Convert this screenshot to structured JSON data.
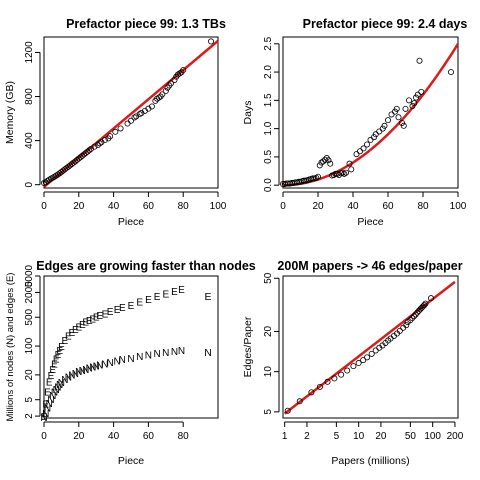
{
  "chart_data": [
    {
      "type": "scatter",
      "title": "Prefactor piece 99: 1.3 TBs",
      "xlabel": "Piece",
      "ylabel": "Memory (GB)",
      "xlim": [
        0,
        100
      ],
      "ylim": [
        -30,
        1340
      ],
      "xticks": [
        0,
        20,
        40,
        60,
        80,
        100
      ],
      "yticks": [
        0,
        400,
        800,
        1200
      ],
      "points": [
        [
          0,
          15
        ],
        [
          1,
          22
        ],
        [
          2,
          35
        ],
        [
          3,
          45
        ],
        [
          4,
          55
        ],
        [
          5,
          63
        ],
        [
          6,
          72
        ],
        [
          7,
          82
        ],
        [
          8,
          92
        ],
        [
          9,
          104
        ],
        [
          10,
          115
        ],
        [
          11,
          128
        ],
        [
          12,
          140
        ],
        [
          13,
          152
        ],
        [
          14,
          163
        ],
        [
          15,
          175
        ],
        [
          16,
          188
        ],
        [
          17,
          200
        ],
        [
          18,
          212
        ],
        [
          19,
          225
        ],
        [
          20,
          238
        ],
        [
          21,
          250
        ],
        [
          22,
          262
        ],
        [
          23,
          275
        ],
        [
          24,
          288
        ],
        [
          25,
          300
        ],
        [
          26,
          312
        ],
        [
          27,
          325
        ],
        [
          29,
          345
        ],
        [
          31,
          360
        ],
        [
          32,
          375
        ],
        [
          33,
          385
        ],
        [
          35,
          405
        ],
        [
          37,
          420
        ],
        [
          38,
          440
        ],
        [
          41,
          480
        ],
        [
          44,
          510
        ],
        [
          48,
          555
        ],
        [
          50,
          580
        ],
        [
          52,
          610
        ],
        [
          53,
          620
        ],
        [
          55,
          640
        ],
        [
          56,
          650
        ],
        [
          58,
          670
        ],
        [
          60,
          690
        ],
        [
          62,
          710
        ],
        [
          64,
          760
        ],
        [
          65,
          780
        ],
        [
          66,
          790
        ],
        [
          67,
          800
        ],
        [
          68,
          820
        ],
        [
          70,
          850
        ],
        [
          71,
          880
        ],
        [
          72,
          900
        ],
        [
          73,
          920
        ],
        [
          75,
          950
        ],
        [
          76,
          980
        ],
        [
          77,
          1000
        ],
        [
          78,
          1010
        ],
        [
          79,
          1020
        ],
        [
          80,
          1040
        ],
        [
          96,
          1300
        ]
      ],
      "fit": {
        "color": "#dd1a1a",
        "x": [
          0,
          100
        ],
        "y": [
          -20,
          1305
        ]
      }
    },
    {
      "type": "scatter",
      "title": "Prefactor piece 99: 2.4 days",
      "xlabel": "Piece",
      "ylabel": "Days",
      "xlim": [
        0,
        100
      ],
      "ylim": [
        -0.05,
        2.62
      ],
      "xticks": [
        0,
        20,
        40,
        60,
        80,
        100
      ],
      "yticks": [
        0.0,
        0.5,
        1.0,
        1.5,
        2.0,
        2.5
      ],
      "points": [
        [
          0,
          0.02
        ],
        [
          1,
          0.02
        ],
        [
          2,
          0.03
        ],
        [
          3,
          0.03
        ],
        [
          4,
          0.03
        ],
        [
          5,
          0.04
        ],
        [
          6,
          0.04
        ],
        [
          7,
          0.05
        ],
        [
          8,
          0.05
        ],
        [
          9,
          0.06
        ],
        [
          10,
          0.06
        ],
        [
          11,
          0.07
        ],
        [
          12,
          0.08
        ],
        [
          13,
          0.08
        ],
        [
          14,
          0.09
        ],
        [
          15,
          0.1
        ],
        [
          16,
          0.11
        ],
        [
          17,
          0.12
        ],
        [
          18,
          0.12
        ],
        [
          19,
          0.13
        ],
        [
          20,
          0.15
        ],
        [
          21,
          0.35
        ],
        [
          22,
          0.4
        ],
        [
          23,
          0.42
        ],
        [
          24,
          0.45
        ],
        [
          25,
          0.48
        ],
        [
          26,
          0.44
        ],
        [
          27,
          0.38
        ],
        [
          28,
          0.17
        ],
        [
          29,
          0.18
        ],
        [
          30,
          0.2
        ],
        [
          31,
          0.2
        ],
        [
          32,
          0.18
        ],
        [
          33,
          0.21
        ],
        [
          34,
          0.22
        ],
        [
          35,
          0.2
        ],
        [
          36,
          0.22
        ],
        [
          38,
          0.38
        ],
        [
          39,
          0.28
        ],
        [
          42,
          0.55
        ],
        [
          44,
          0.6
        ],
        [
          46,
          0.65
        ],
        [
          48,
          0.72
        ],
        [
          50,
          0.8
        ],
        [
          52,
          0.85
        ],
        [
          53,
          0.9
        ],
        [
          55,
          0.95
        ],
        [
          57,
          1.0
        ],
        [
          58,
          1.05
        ],
        [
          60,
          1.15
        ],
        [
          62,
          1.25
        ],
        [
          64,
          1.3
        ],
        [
          65,
          1.35
        ],
        [
          66,
          1.2
        ],
        [
          68,
          1.1
        ],
        [
          69,
          1.05
        ],
        [
          70,
          1.35
        ],
        [
          72,
          1.5
        ],
        [
          74,
          1.4
        ],
        [
          75,
          1.45
        ],
        [
          76,
          1.55
        ],
        [
          77,
          1.6
        ],
        [
          78,
          2.2
        ],
        [
          79,
          1.65
        ],
        [
          96,
          2.0
        ]
      ],
      "fit": {
        "color": "#dd1a1a",
        "x": [
          0,
          100
        ],
        "y": [
          0.0,
          2.5
        ]
      }
    },
    {
      "type": "line",
      "title": "Edges are growing faster than nodes",
      "xlabel": "Piece",
      "ylabel": "Millions of nodes (N) and edges (E)",
      "ylog": true,
      "xlim": [
        0,
        100
      ],
      "ylim": [
        1.8,
        5000
      ],
      "xticks": [
        0,
        20,
        40,
        60,
        80
      ],
      "yticks": [
        2,
        5,
        20,
        100,
        500,
        2000,
        5000
      ],
      "series": [
        {
          "name": "E",
          "marker": "E",
          "x": [
            0,
            1,
            2,
            3,
            4,
            5,
            6,
            7,
            8,
            9,
            10,
            12,
            14,
            16,
            18,
            20,
            22,
            24,
            26,
            28,
            30,
            32,
            35,
            38,
            42,
            45,
            50,
            55,
            60,
            65,
            70,
            75,
            79
          ],
          "y": [
            2,
            4,
            8,
            14,
            20,
            28,
            38,
            50,
            65,
            80,
            100,
            140,
            180,
            220,
            260,
            300,
            340,
            390,
            430,
            470,
            520,
            560,
            620,
            700,
            800,
            880,
            1000,
            1200,
            1400,
            1650,
            1900,
            2150,
            2400
          ]
        },
        {
          "name": "N",
          "marker": "N",
          "x": [
            0,
            1,
            2,
            3,
            4,
            5,
            6,
            7,
            8,
            9,
            10,
            12,
            14,
            16,
            18,
            20,
            22,
            24,
            26,
            28,
            30,
            32,
            35,
            38,
            42,
            45,
            50,
            55,
            60,
            65,
            70,
            75,
            79
          ],
          "y": [
            1.9,
            2.4,
            3.2,
            4.2,
            5.2,
            6.5,
            7.8,
            9,
            10.5,
            12,
            13.5,
            16,
            18.5,
            20.5,
            22.5,
            24.5,
            26.5,
            28,
            30,
            32,
            34,
            35.5,
            38,
            41,
            45,
            48,
            52,
            57,
            62,
            67,
            72,
            76,
            80
          ]
        }
      ],
      "end_labels": [
        "E",
        "N"
      ]
    },
    {
      "type": "scatter",
      "title": "200M papers -> 46 edges/paper",
      "xlabel": "Papers (millions)",
      "ylabel": "Edges/Paper",
      "xlog": true,
      "ylog": true,
      "xlim": [
        0.95,
        220
      ],
      "ylim": [
        4.5,
        52
      ],
      "xtick_values": [
        1,
        2,
        5,
        10,
        20,
        50,
        100,
        200
      ],
      "xtick_labels": [
        "1",
        "2",
        "5",
        "10",
        "20",
        "50",
        "100",
        "200"
      ],
      "ytick_values": [
        5,
        10,
        20,
        50
      ],
      "ytick_labels": [
        "5",
        "10",
        "20",
        "50"
      ],
      "points": [
        [
          1.1,
          5.1
        ],
        [
          1.6,
          6.0
        ],
        [
          2.3,
          7.0
        ],
        [
          3.0,
          7.7
        ],
        [
          3.8,
          8.4
        ],
        [
          4.7,
          8.9
        ],
        [
          5.8,
          9.5
        ],
        [
          7,
          10.2
        ],
        [
          8.5,
          11.0
        ],
        [
          10,
          11.6
        ],
        [
          11.5,
          12.2
        ],
        [
          13,
          12.8
        ],
        [
          15,
          13.6
        ],
        [
          17,
          14.4
        ],
        [
          19,
          15.1
        ],
        [
          21,
          15.7
        ],
        [
          23,
          16.4
        ],
        [
          25,
          17.1
        ],
        [
          27,
          17.7
        ],
        [
          30,
          18.5
        ],
        [
          33,
          19.3
        ],
        [
          36,
          20.2
        ],
        [
          40,
          21.3
        ],
        [
          44,
          22.3
        ],
        [
          46,
          23.5
        ],
        [
          50,
          24.3
        ],
        [
          53,
          25.2
        ],
        [
          56,
          26.0
        ],
        [
          59,
          26.8
        ],
        [
          62,
          27.7
        ],
        [
          65,
          28.5
        ],
        [
          68,
          29.3
        ],
        [
          71,
          30.0
        ],
        [
          74,
          30.8
        ],
        [
          77,
          31.5
        ],
        [
          80,
          32.3
        ],
        [
          95,
          35.5
        ]
      ],
      "fit": {
        "color": "#dd1a1a",
        "x": [
          1.0,
          200
        ],
        "y": [
          4.85,
          47
        ]
      }
    }
  ]
}
